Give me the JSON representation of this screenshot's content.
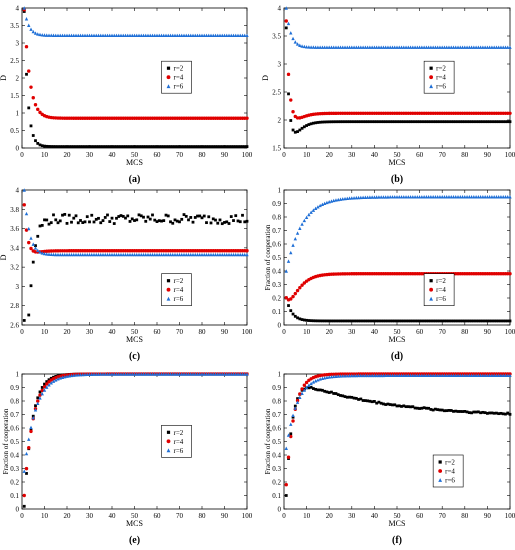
{
  "chart_data": [
    {
      "id": "a",
      "type": "scatter",
      "caption": "(a)",
      "xlabel": "MCS",
      "ylabel": "D",
      "xlim": [
        0,
        100
      ],
      "ylim": [
        0,
        4
      ],
      "xticks": [
        0,
        10,
        20,
        30,
        40,
        50,
        60,
        70,
        80,
        90,
        100
      ],
      "yticks": [
        0,
        0.5,
        1,
        1.5,
        2,
        2.5,
        3,
        3.5,
        4
      ],
      "ytick_labels": [
        "0",
        "0.5",
        "1",
        "1.5",
        "2",
        "2.5",
        "3",
        "3.5",
        "4"
      ],
      "legend": "right",
      "series": [
        {
          "name": "r=2",
          "color": "#000000",
          "marker": "square",
          "start": 3.9,
          "plateau": 0.04,
          "tau": 1.6,
          "noise": 0,
          "hump": 0,
          "humpTau": 1
        },
        {
          "name": "r=4",
          "color": "#e00000",
          "marker": "circle",
          "start": 3.95,
          "plateau": 0.85,
          "tau": 2.4,
          "noise": 0,
          "hump": 0,
          "humpTau": 1
        },
        {
          "name": "r=6",
          "color": "#1f6fd6",
          "marker": "triangle",
          "start": 4.0,
          "plateau": 3.22,
          "tau": 2.0,
          "noise": 0,
          "hump": 0,
          "humpTau": 1
        }
      ]
    },
    {
      "id": "b",
      "type": "scatter",
      "caption": "(b)",
      "xlabel": "MCS",
      "ylabel": "D",
      "xlim": [
        0,
        100
      ],
      "ylim": [
        1.5,
        4
      ],
      "xticks": [
        0,
        10,
        20,
        30,
        40,
        50,
        60,
        70,
        80,
        90,
        100
      ],
      "yticks": [
        1.5,
        2,
        2.5,
        3,
        3.5,
        4
      ],
      "ytick_labels": [
        "1.5",
        "2",
        "2.5",
        "3",
        "3.5",
        "4"
      ],
      "legend": "right",
      "series": [
        {
          "name": "r=2",
          "color": "#000000",
          "marker": "square",
          "start": 3.9,
          "plateau": 1.97,
          "tau": 1.2,
          "noise": 0,
          "hump": -0.35,
          "humpTau": 2.5
        },
        {
          "name": "r=4",
          "color": "#e00000",
          "marker": "circle",
          "start": 3.95,
          "plateau": 2.12,
          "tau": 1.5,
          "noise": 0,
          "hump": -0.25,
          "humpTau": 2.5
        },
        {
          "name": "r=6",
          "color": "#1f6fd6",
          "marker": "triangle",
          "start": 4.0,
          "plateau": 3.3,
          "tau": 2.0,
          "noise": 0,
          "hump": 0,
          "humpTau": 1
        }
      ]
    },
    {
      "id": "c",
      "type": "scatter",
      "caption": "(c)",
      "xlabel": "MCS",
      "ylabel": "D",
      "xlim": [
        0,
        100
      ],
      "ylim": [
        2.6,
        4
      ],
      "xticks": [
        0,
        10,
        20,
        30,
        40,
        50,
        60,
        70,
        80,
        90,
        100
      ],
      "yticks": [
        2.6,
        2.8,
        3,
        3.2,
        3.4,
        3.6,
        3.8,
        4
      ],
      "ytick_labels": [
        "2.6",
        "2.8",
        "3",
        "3.2",
        "3.4",
        "3.6",
        "3.8",
        "4"
      ],
      "legend": "right",
      "series": [
        {
          "name": "r=2",
          "color": "#000000",
          "marker": "square",
          "start": 3.95,
          "plateau": 3.7,
          "tau": 1.0,
          "noise": 0.05,
          "hump": -1.4,
          "humpTau": 1.5
        },
        {
          "name": "r=4",
          "color": "#e00000",
          "marker": "circle",
          "start": 3.97,
          "plateau": 3.37,
          "tau": 2.0,
          "noise": 0,
          "hump": -0.15,
          "humpTau": 2.0
        },
        {
          "name": "r=6",
          "color": "#1f6fd6",
          "marker": "triangle",
          "start": 4.0,
          "plateau": 3.33,
          "tau": 2.2,
          "noise": 0,
          "hump": 0,
          "humpTau": 1
        }
      ]
    },
    {
      "id": "d",
      "type": "scatter",
      "caption": "(d)",
      "xlabel": "MCS",
      "ylabel": "Fraction of cooperation",
      "xlim": [
        0,
        100
      ],
      "ylim": [
        0,
        1
      ],
      "xticks": [
        0,
        10,
        20,
        30,
        40,
        50,
        60,
        70,
        80,
        90,
        100
      ],
      "yticks": [
        0,
        0.1,
        0.2,
        0.3,
        0.4,
        0.5,
        0.6,
        0.7,
        0.8,
        0.9,
        1
      ],
      "ytick_labels": [
        "0",
        "0.1",
        "0.2",
        "0.3",
        "0.4",
        "0.5",
        "0.6",
        "0.7",
        "0.8",
        "0.9",
        "1"
      ],
      "legend": "right",
      "series": [
        {
          "name": "r=2",
          "color": "#000000",
          "marker": "square",
          "start": 0.2,
          "plateau": 0.03,
          "tau": 2.5,
          "noise": 0,
          "hump": 0,
          "humpTau": 1
        },
        {
          "name": "r=4",
          "color": "#e00000",
          "marker": "circle",
          "start": 0.28,
          "plateau": 0.38,
          "tau": 5.0,
          "noise": 0,
          "hump": -0.12,
          "humpTau": 3.0
        },
        {
          "name": "r=6",
          "color": "#1f6fd6",
          "marker": "triangle",
          "start": 0.4,
          "plateau": 0.95,
          "tau": 7.0,
          "noise": 0,
          "hump": 0,
          "humpTau": 1
        }
      ]
    },
    {
      "id": "e",
      "type": "scatter",
      "caption": "(e)",
      "xlabel": "MCS",
      "ylabel": "Fraction of cooperation",
      "xlim": [
        0,
        100
      ],
      "ylim": [
        0,
        1
      ],
      "xticks": [
        0,
        10,
        20,
        30,
        40,
        50,
        60,
        70,
        80,
        90,
        100
      ],
      "yticks": [
        0,
        0.1,
        0.2,
        0.3,
        0.4,
        0.5,
        0.6,
        0.7,
        0.8,
        0.9,
        1
      ],
      "ytick_labels": [
        "0",
        "0.1",
        "0.2",
        "0.3",
        "0.4",
        "0.5",
        "0.6",
        "0.7",
        "0.8",
        "0.9",
        "1"
      ],
      "legend": "right",
      "series": [
        {
          "name": "r=2",
          "color": "#000000",
          "marker": "square",
          "start": 0.02,
          "plateau": 1.0,
          "tau": 3.5,
          "noise": 0,
          "hump": 0,
          "humpTau": 1
        },
        {
          "name": "r=4",
          "color": "#e00000",
          "marker": "circle",
          "start": 0.1,
          "plateau": 1.0,
          "tau": 4.0,
          "noise": 0,
          "hump": 0,
          "humpTau": 1
        },
        {
          "name": "r=6",
          "color": "#1f6fd6",
          "marker": "triangle",
          "start": 0.28,
          "plateau": 1.0,
          "tau": 5.0,
          "noise": 0,
          "hump": 0,
          "humpTau": 1
        }
      ]
    },
    {
      "id": "f",
      "type": "scatter",
      "caption": "(f)",
      "xlabel": "MCS",
      "ylabel": "Fraction of cooperation",
      "xlim": [
        0,
        100
      ],
      "ylim": [
        0,
        1
      ],
      "xticks": [
        0,
        10,
        20,
        30,
        40,
        50,
        60,
        70,
        80,
        90,
        100
      ],
      "yticks": [
        0,
        0.1,
        0.2,
        0.3,
        0.4,
        0.5,
        0.6,
        0.7,
        0.8,
        0.9,
        1
      ],
      "ytick_labels": [
        "0",
        "0.1",
        "0.2",
        "0.3",
        "0.4",
        "0.5",
        "0.6",
        "0.7",
        "0.8",
        "0.9",
        "1"
      ],
      "legend": "lower-right",
      "series": [
        {
          "name": "r=2",
          "color": "#000000",
          "marker": "square",
          "start": 0.1,
          "plateau": 0.68,
          "tau": 40.0,
          "noise": 0.006,
          "hump": 0,
          "humpTau": 1,
          "rise": 0.93,
          "riseTau": 2.5
        },
        {
          "name": "r=4",
          "color": "#e00000",
          "marker": "circle",
          "start": 0.18,
          "plateau": 1.0,
          "tau": 3.5,
          "noise": 0,
          "hump": 0,
          "humpTau": 1
        },
        {
          "name": "r=6",
          "color": "#1f6fd6",
          "marker": "triangle",
          "start": 0.45,
          "plateau": 0.99,
          "tau": 5.0,
          "noise": 0,
          "hump": 0,
          "humpTau": 1
        }
      ]
    }
  ]
}
